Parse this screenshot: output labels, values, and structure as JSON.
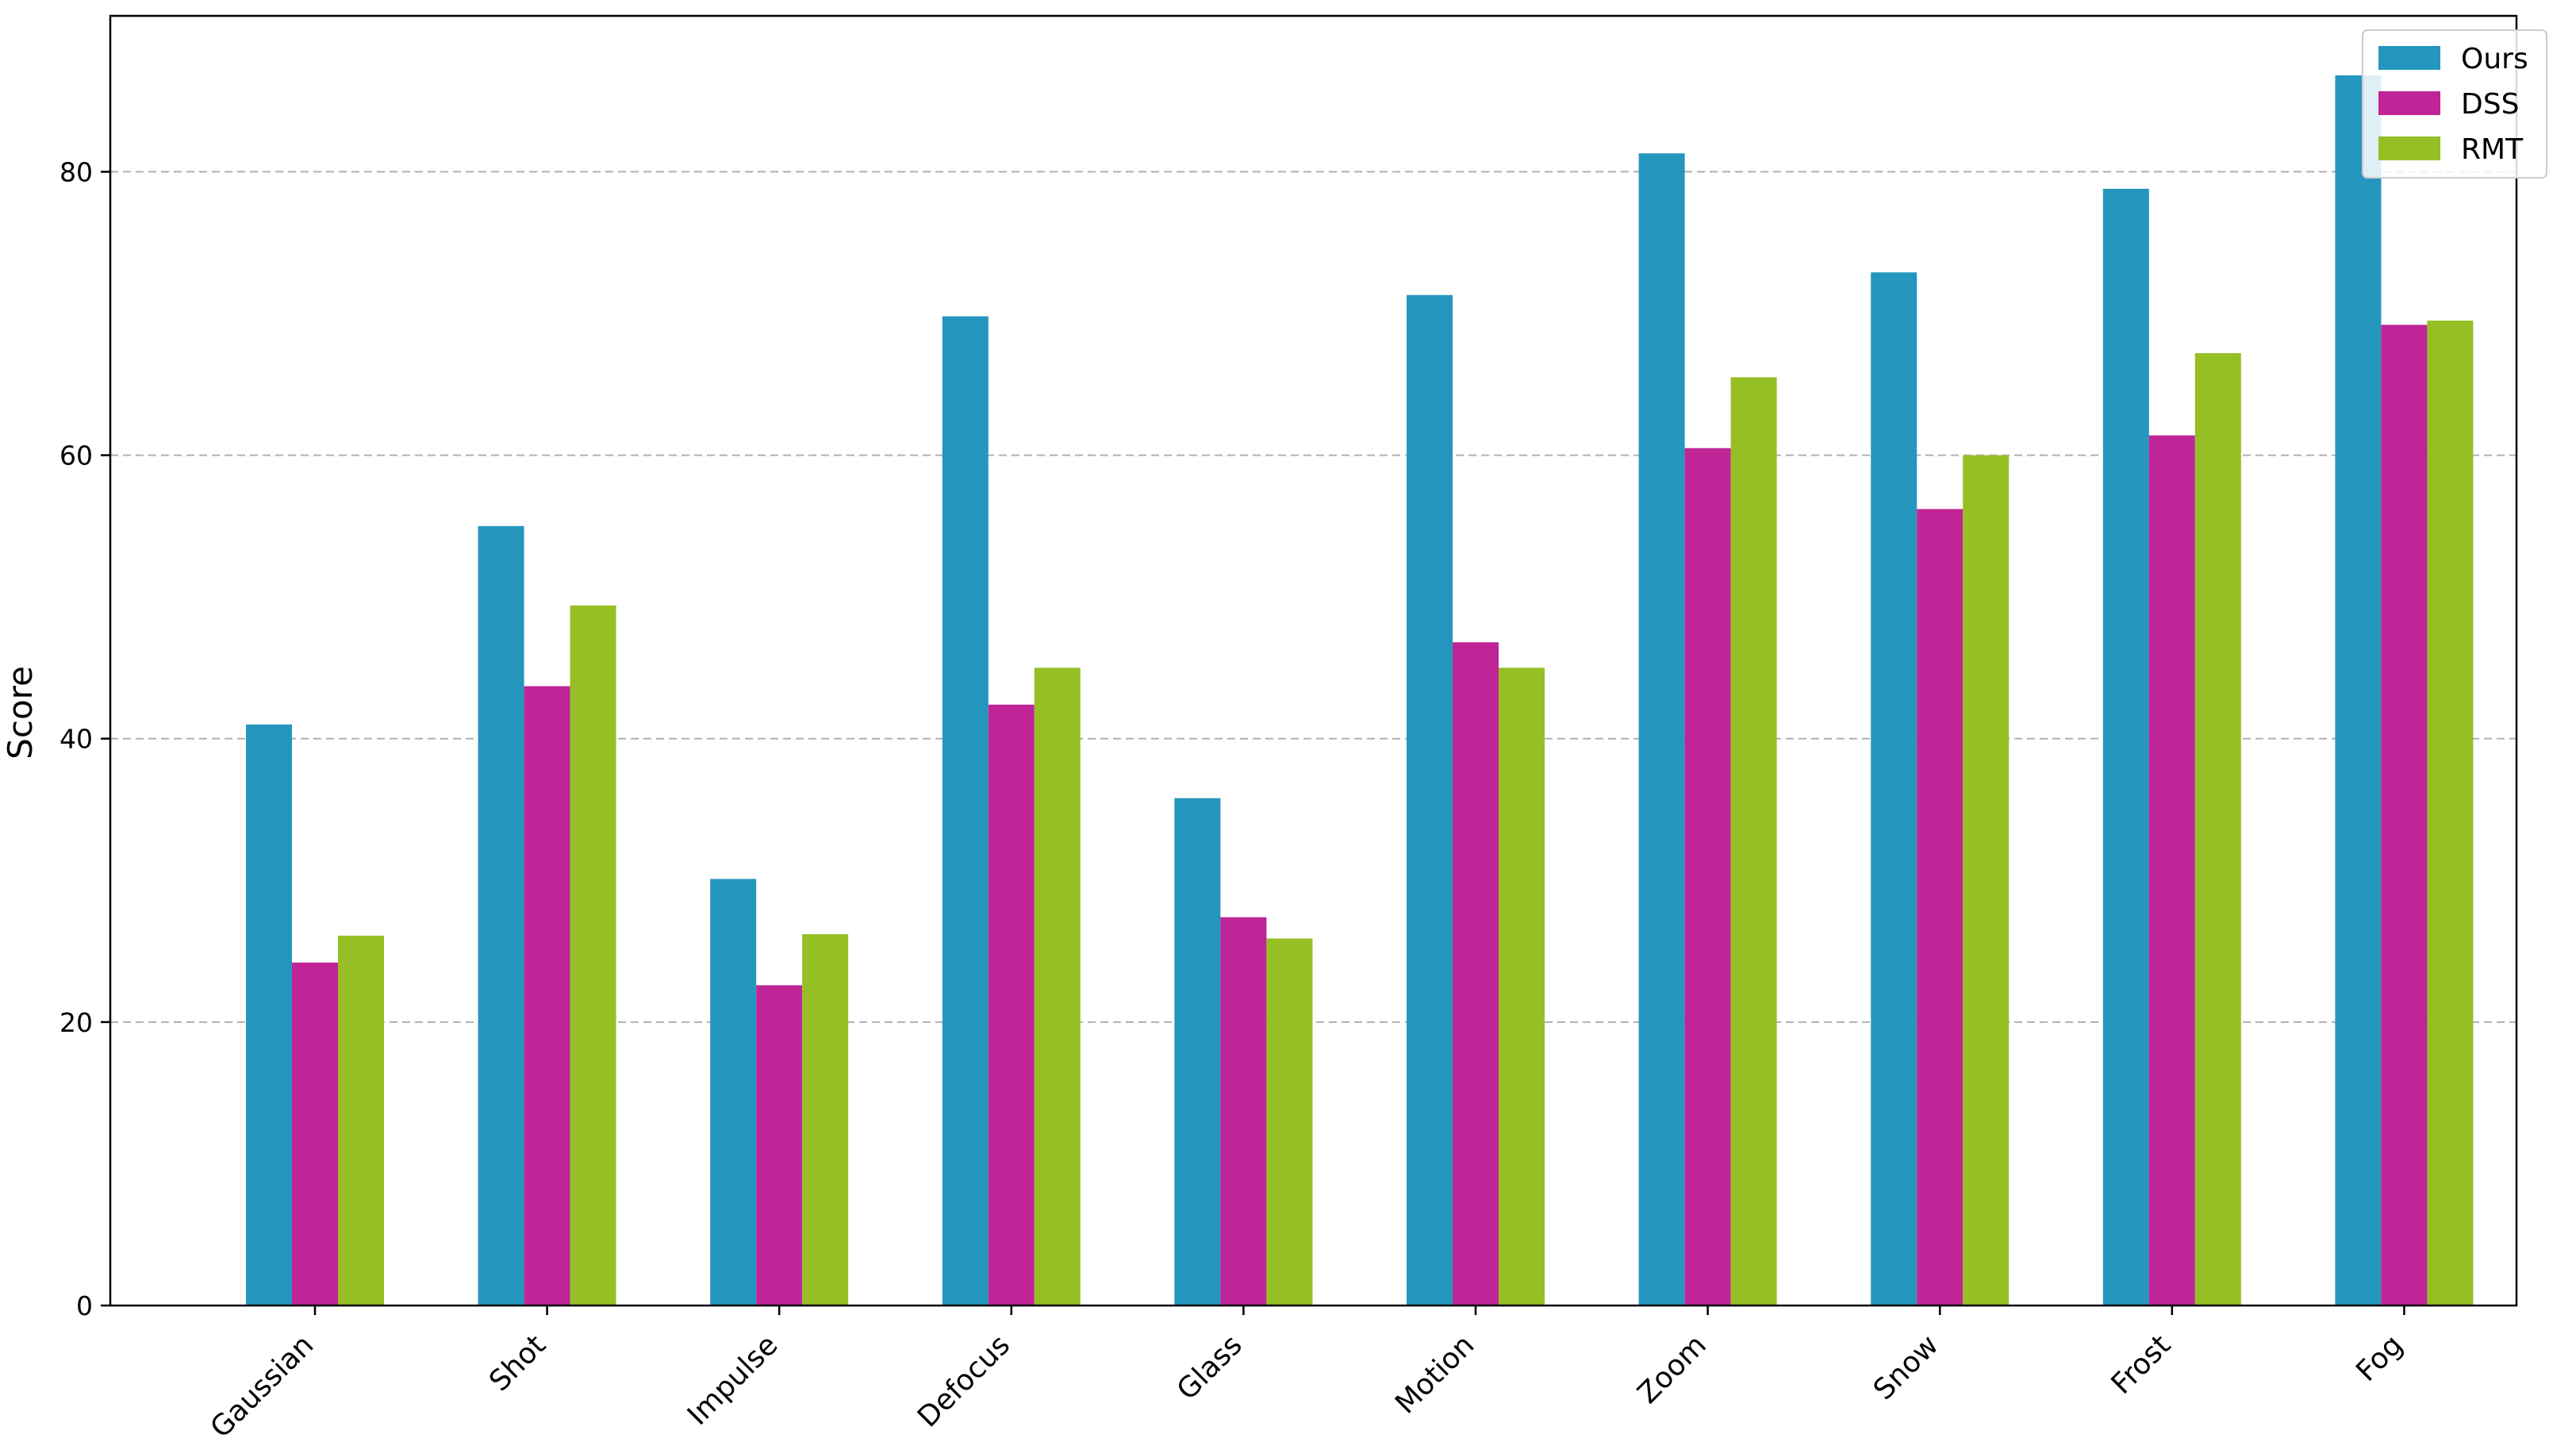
{
  "chart_data": {
    "type": "bar",
    "title": "",
    "xlabel": "",
    "ylabel": "Score",
    "ylim": [
      0,
      91
    ],
    "yticks": [
      0,
      20,
      40,
      60,
      80
    ],
    "grid": "y-dashed",
    "legend_position": "top-right",
    "categories": [
      "Gaussian",
      "Shot",
      "Impulse",
      "Defocus",
      "Glass",
      "Motion",
      "Zoom",
      "Snow",
      "Frost",
      "Fog"
    ],
    "series": [
      {
        "name": "Ours",
        "color": "#2596be",
        "values": [
          41.0,
          55.0,
          30.1,
          69.8,
          35.8,
          71.3,
          81.3,
          72.9,
          78.8,
          86.8
        ]
      },
      {
        "name": "DSS",
        "color": "#bf2596",
        "values": [
          24.2,
          43.7,
          22.6,
          42.4,
          27.4,
          46.8,
          60.5,
          56.2,
          61.4,
          69.2
        ]
      },
      {
        "name": "RMT",
        "color": "#96be25",
        "values": [
          26.1,
          49.4,
          26.2,
          45.0,
          25.9,
          45.0,
          65.5,
          60.0,
          67.2,
          69.5
        ]
      }
    ]
  }
}
